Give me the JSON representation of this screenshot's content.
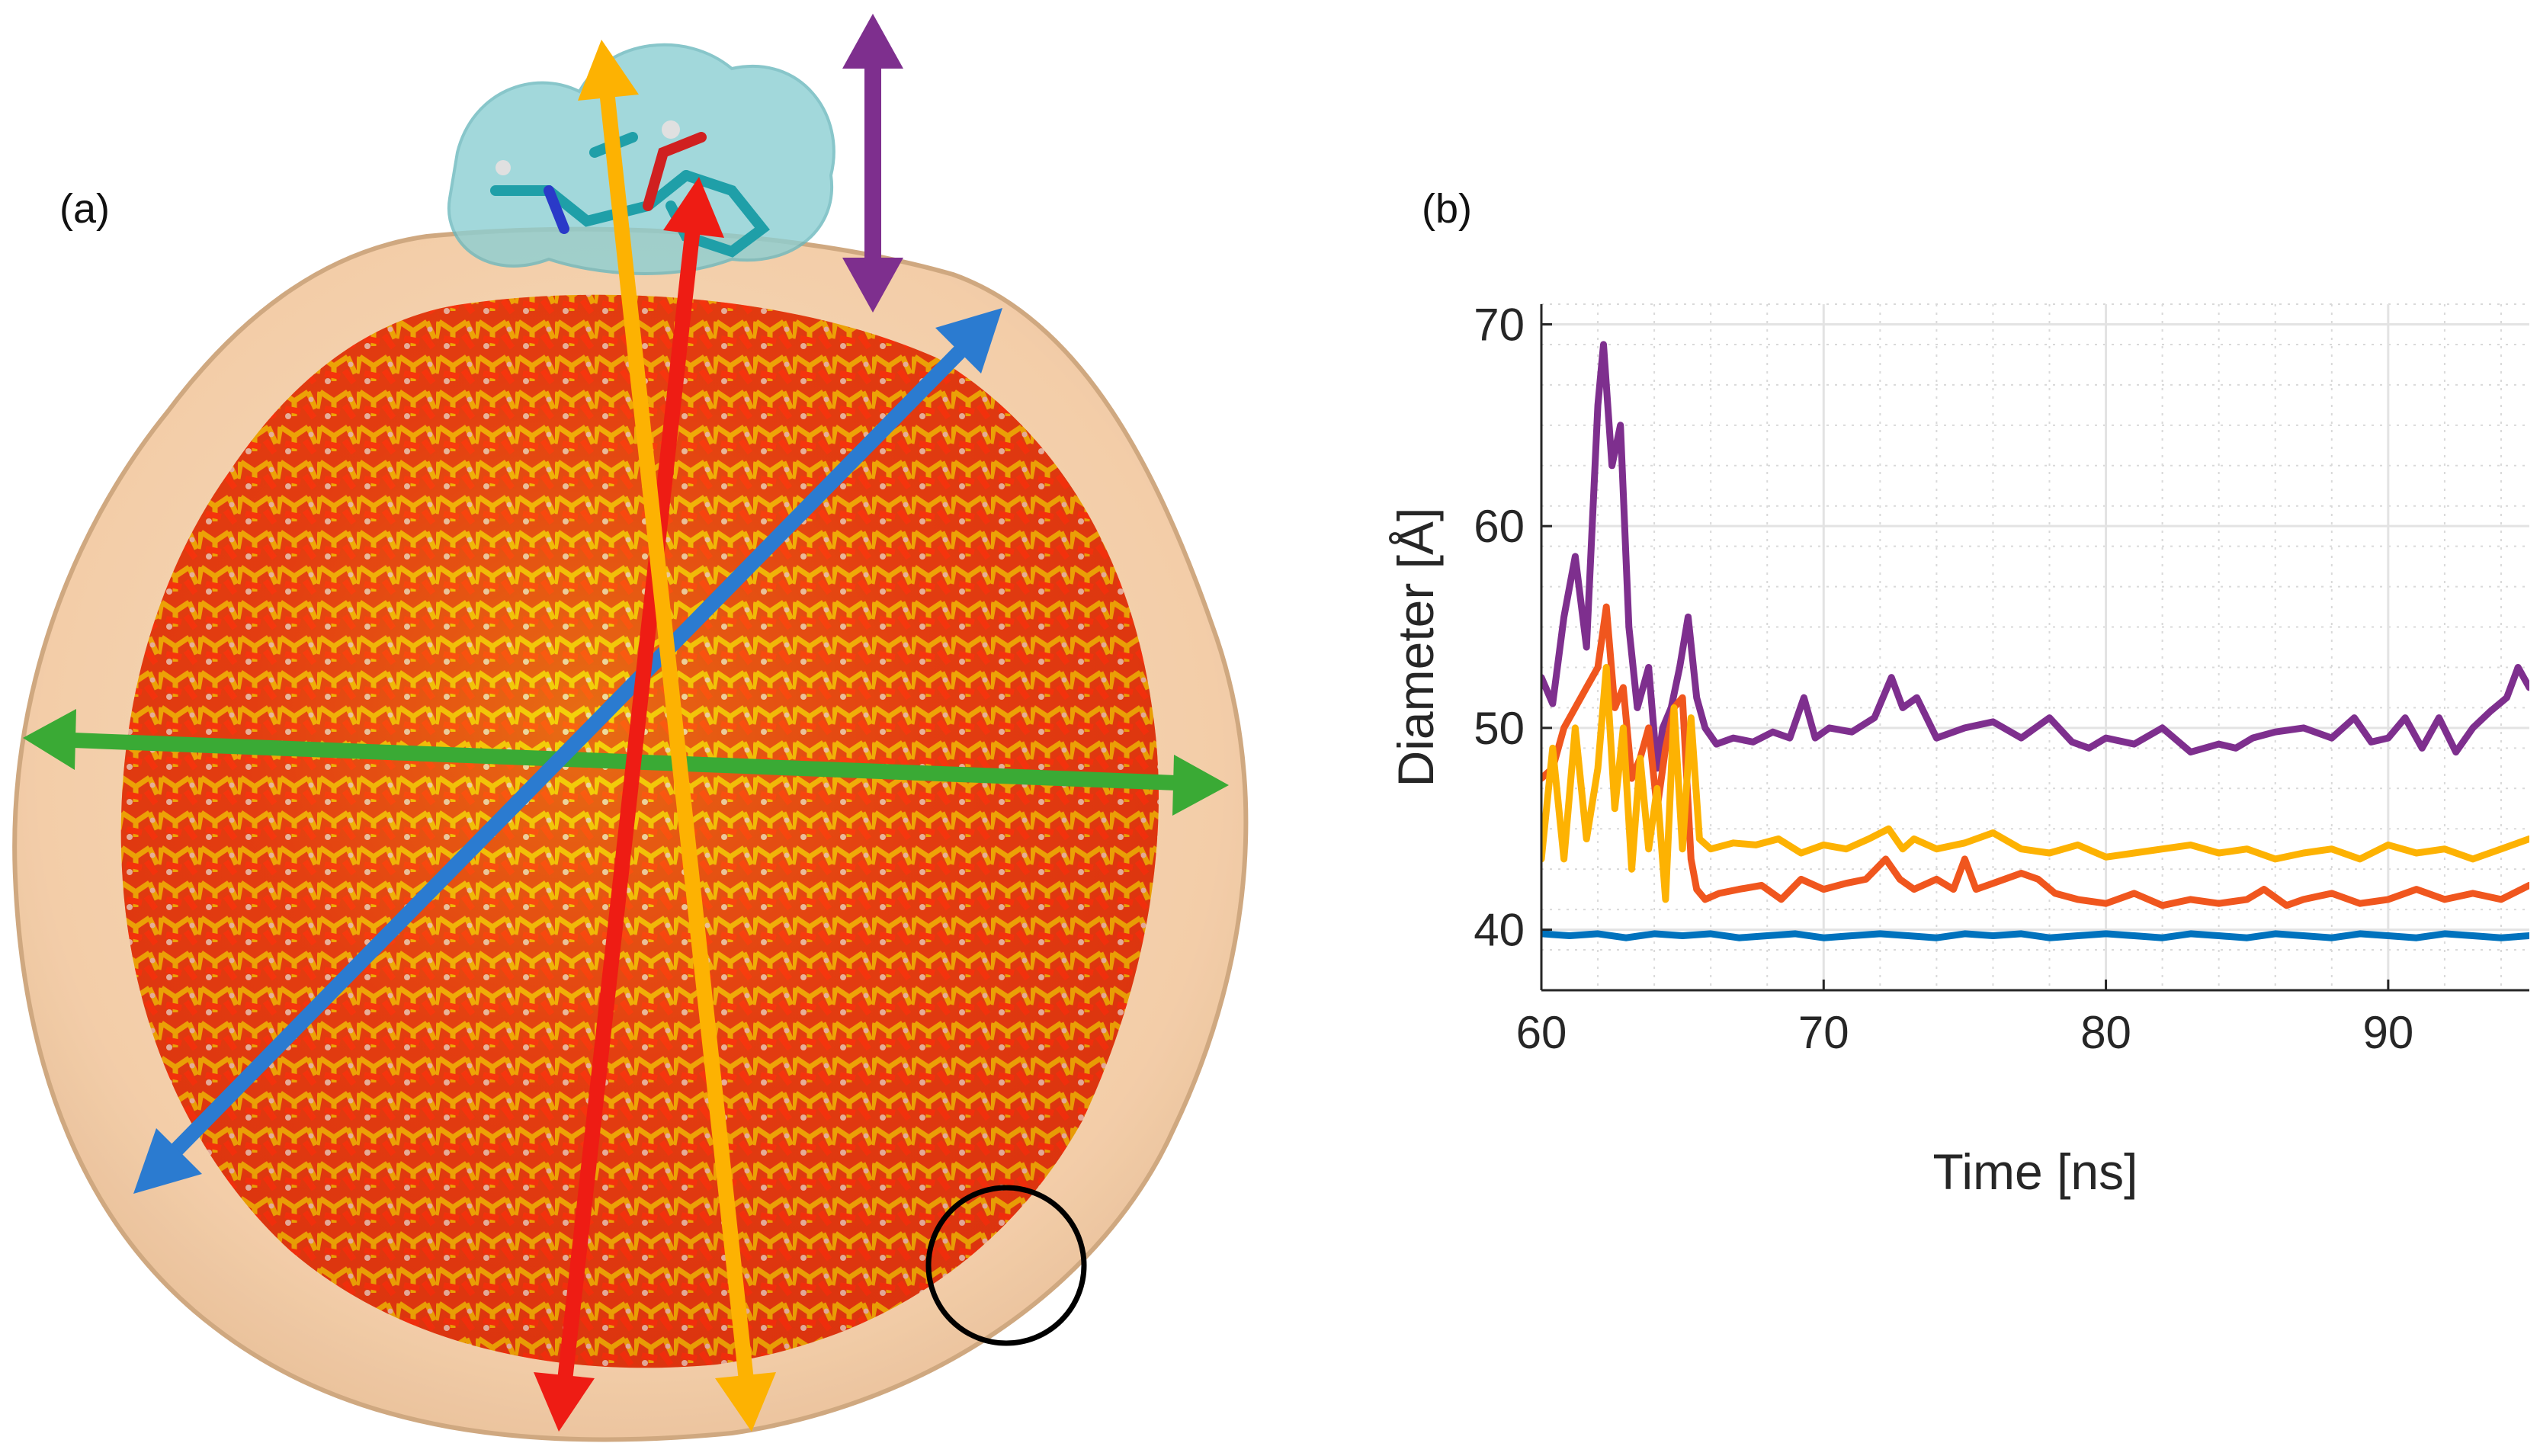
{
  "panels": {
    "a_label": "(a)",
    "b_label": "(b)"
  },
  "colors": {
    "purple": "#7E2F8E",
    "orange": "#F0561E",
    "yellow": "#FDB202",
    "blue": "#0072BD",
    "red": "#EE1C14",
    "green": "#3AAA35",
    "arrow_yellow": "#FDB202",
    "arrow_purple": "#7E2F8E",
    "arrow_blue": "#2B7BD0",
    "shell": "#F2C79A",
    "molecule_shell": "#8CCFD3"
  },
  "chart_data": {
    "type": "line",
    "title": "",
    "xlabel": "Time [ns]",
    "ylabel": "Diameter [Å]",
    "xlim": [
      60,
      95
    ],
    "ylim": [
      37,
      71
    ],
    "xticks": [
      60,
      70,
      80,
      90
    ],
    "yticks": [
      40,
      50,
      60,
      70
    ],
    "grid": true,
    "series": [
      {
        "name": "purple",
        "color": "#7E2F8E",
        "x": [
          60,
          60.4,
          60.8,
          61.2,
          61.6,
          62,
          62.2,
          62.5,
          62.8,
          63.1,
          63.4,
          63.8,
          64.1,
          64.3,
          64.6,
          64.9,
          65.2,
          65.5,
          65.8,
          66.2,
          66.8,
          67.5,
          68.2,
          68.8,
          69.3,
          69.7,
          70.2,
          71,
          71.8,
          72.4,
          72.8,
          73.3,
          74,
          75,
          76,
          77,
          78,
          78.8,
          79.4,
          80,
          81,
          82,
          83,
          84,
          84.6,
          85.2,
          86,
          87,
          88,
          88.8,
          89.4,
          90,
          90.6,
          91.2,
          91.8,
          92.4,
          93,
          93.6,
          94.2,
          94.6,
          95
        ],
        "y": [
          52.5,
          51.2,
          55.5,
          58.5,
          54,
          66,
          69,
          63,
          65,
          55,
          51,
          53,
          48,
          50,
          51,
          53,
          55.5,
          51.5,
          50,
          49.2,
          49.5,
          49.3,
          49.8,
          49.5,
          51.5,
          49.5,
          50,
          49.8,
          50.5,
          52.5,
          51,
          51.5,
          49.5,
          50,
          50.3,
          49.5,
          50.5,
          49.3,
          49,
          49.5,
          49.2,
          50,
          48.8,
          49.2,
          49,
          49.5,
          49.8,
          50,
          49.5,
          50.5,
          49.3,
          49.5,
          50.5,
          49,
          50.5,
          48.8,
          50,
          50.8,
          51.5,
          53,
          52
        ]
      },
      {
        "name": "orange",
        "color": "#F0561E",
        "x": [
          60,
          60.4,
          60.8,
          61.2,
          61.6,
          62,
          62.3,
          62.6,
          62.9,
          63.2,
          63.5,
          63.8,
          64.1,
          64.4,
          64.7,
          65,
          65.3,
          65.5,
          65.8,
          66.3,
          67,
          67.8,
          68.5,
          69.2,
          70,
          70.8,
          71.5,
          72.2,
          72.7,
          73.2,
          74,
          74.6,
          75,
          75.4,
          76,
          77,
          77.6,
          78.2,
          79,
          80,
          81,
          82,
          83,
          84,
          85,
          85.6,
          86.4,
          87,
          88,
          89,
          90,
          91,
          92,
          93,
          94,
          95
        ],
        "y": [
          47.5,
          48,
          50,
          51,
          52,
          53,
          56,
          51,
          52,
          47.5,
          48.5,
          50,
          46,
          49,
          51,
          51.5,
          43.5,
          42,
          41.5,
          41.8,
          42,
          42.2,
          41.5,
          42.5,
          42,
          42.3,
          42.5,
          43.5,
          42.5,
          42,
          42.5,
          42,
          43.5,
          42,
          42.3,
          42.8,
          42.5,
          41.8,
          41.5,
          41.3,
          41.8,
          41.2,
          41.5,
          41.3,
          41.5,
          42,
          41.2,
          41.5,
          41.8,
          41.3,
          41.5,
          42,
          41.5,
          41.8,
          41.5,
          42.2
        ]
      },
      {
        "name": "yellow",
        "color": "#FDB202",
        "x": [
          60,
          60.4,
          60.8,
          61.2,
          61.6,
          62,
          62.3,
          62.6,
          62.9,
          63.2,
          63.5,
          63.8,
          64.1,
          64.4,
          64.7,
          65,
          65.3,
          65.6,
          66,
          66.8,
          67.6,
          68.4,
          69.2,
          70,
          70.8,
          71.6,
          72.3,
          72.8,
          73.2,
          74,
          75,
          76,
          77,
          78,
          79,
          80,
          81,
          82,
          83,
          84,
          85,
          86,
          87,
          88,
          89,
          90,
          91,
          92,
          93,
          94,
          95
        ],
        "y": [
          43.5,
          49,
          43.5,
          50,
          44.5,
          48,
          53,
          46,
          50,
          43,
          48.5,
          44,
          47,
          41.5,
          51,
          44,
          50.5,
          44.5,
          44,
          44.3,
          44.2,
          44.5,
          43.8,
          44.2,
          44,
          44.5,
          45,
          44,
          44.5,
          44,
          44.3,
          44.8,
          44,
          43.8,
          44.2,
          43.6,
          43.8,
          44,
          44.2,
          43.8,
          44,
          43.5,
          43.8,
          44,
          43.5,
          44.2,
          43.8,
          44,
          43.5,
          44,
          44.5
        ]
      },
      {
        "name": "blue",
        "color": "#0072BD",
        "x": [
          60,
          61,
          62,
          63,
          64,
          65,
          66,
          67,
          68,
          69,
          70,
          71,
          72,
          73,
          74,
          75,
          76,
          77,
          78,
          79,
          80,
          81,
          82,
          83,
          84,
          85,
          86,
          87,
          88,
          89,
          90,
          91,
          92,
          93,
          94,
          95
        ],
        "y": [
          39.8,
          39.7,
          39.8,
          39.6,
          39.8,
          39.7,
          39.8,
          39.6,
          39.7,
          39.8,
          39.6,
          39.7,
          39.8,
          39.7,
          39.6,
          39.8,
          39.7,
          39.8,
          39.6,
          39.7,
          39.8,
          39.7,
          39.6,
          39.8,
          39.7,
          39.6,
          39.8,
          39.7,
          39.6,
          39.8,
          39.7,
          39.6,
          39.8,
          39.7,
          39.6,
          39.7
        ]
      }
    ]
  }
}
